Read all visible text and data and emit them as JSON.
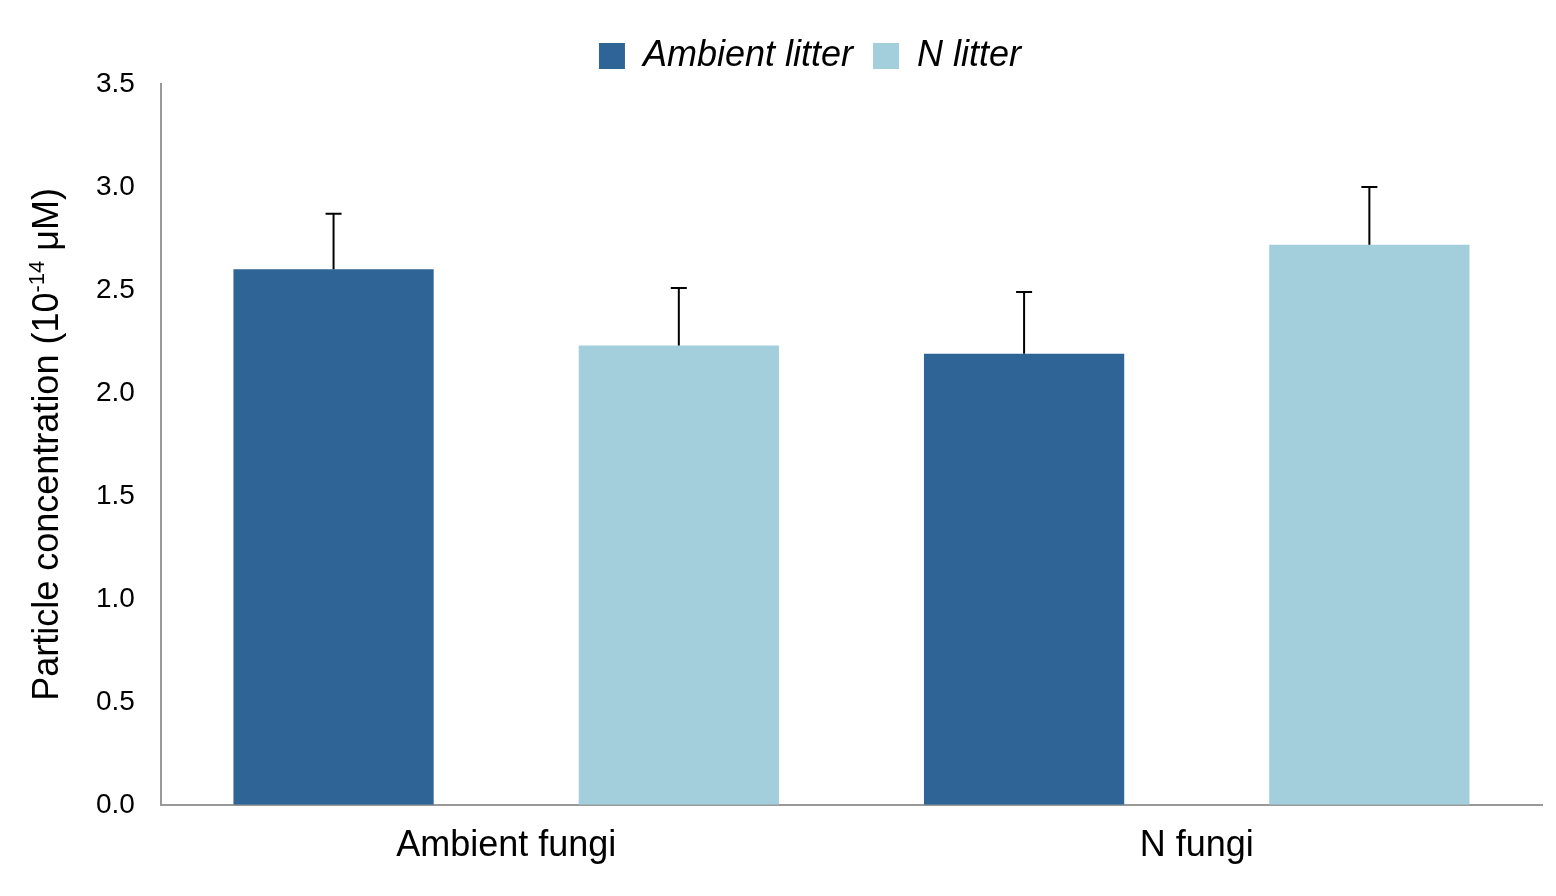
{
  "chart_data": {
    "type": "bar",
    "ylabel": "Particle concentration (10$^{-14}$ μM)",
    "categories": [
      "Ambient fungi",
      "N fungi"
    ],
    "series": [
      {
        "name": "Ambient litter",
        "color": "#2e6496",
        "values": [
          2.6,
          2.19
        ],
        "errors": [
          [
            2.6,
            2.87
          ],
          [
            2.19,
            2.49
          ]
        ]
      },
      {
        "name": "N litter",
        "color": "#a3cfdd",
        "values": [
          2.23,
          2.72
        ],
        "errors": [
          [
            2.23,
            2.51
          ],
          [
            2.72,
            3.0
          ]
        ]
      }
    ],
    "ylim": [
      0,
      3.5
    ],
    "yticks": [
      {
        "value": 0,
        "label": "0.0"
      },
      {
        "value": 0.5,
        "label": "0.5"
      },
      {
        "value": 1,
        "label": "1.0"
      },
      {
        "value": 1.5,
        "label": "1.5"
      },
      {
        "value": 2,
        "label": "2.0"
      },
      {
        "value": 2.5,
        "label": "2.5"
      },
      {
        "value": 3,
        "label": "3.0"
      },
      {
        "value": 3.5,
        "label": "3.5"
      }
    ],
    "grid": false,
    "legend": "top"
  }
}
